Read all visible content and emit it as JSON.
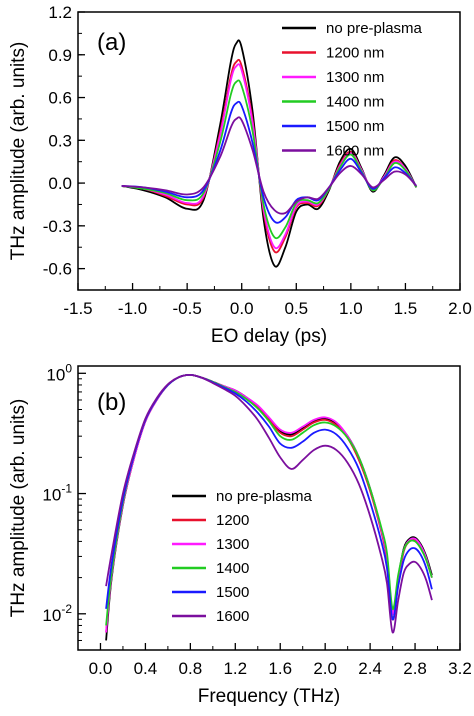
{
  "chart_data": [
    {
      "panel": "(a)",
      "type": "line",
      "xlabel": "EO delay (ps)",
      "ylabel": "THz amplitude (arb. units)",
      "xlim": [
        -1.5,
        2.0
      ],
      "ylim": [
        -0.75,
        1.2
      ],
      "xticks": [
        "-1.5",
        "-1.0",
        "-0.5",
        "0.0",
        "0.5",
        "1.0",
        "1.5",
        "2.0"
      ],
      "xtick_values": [
        -1.5,
        -1.0,
        -0.5,
        0.0,
        0.5,
        1.0,
        1.5,
        2.0
      ],
      "yticks": [
        "-0.6",
        "-0.3",
        "0.0",
        "0.3",
        "0.6",
        "0.9",
        "1.2"
      ],
      "ytick_values": [
        -0.6,
        -0.3,
        0.0,
        0.3,
        0.6,
        0.9,
        1.2
      ],
      "legend_position": "top-right",
      "x": [
        -1.1,
        -0.9,
        -0.7,
        -0.5,
        -0.35,
        -0.2,
        -0.1,
        -0.05,
        0.0,
        0.1,
        0.2,
        0.3,
        0.4,
        0.5,
        0.6,
        0.7,
        0.8,
        0.9,
        1.0,
        1.1,
        1.2,
        1.3,
        1.4,
        1.5,
        1.6
      ],
      "series": [
        {
          "name": "no pre-plasma",
          "color": "#000000",
          "values": [
            -0.02,
            -0.05,
            -0.1,
            -0.18,
            -0.12,
            0.4,
            0.85,
            0.98,
            0.95,
            0.5,
            -0.25,
            -0.58,
            -0.45,
            -0.2,
            -0.15,
            -0.18,
            -0.05,
            0.15,
            0.24,
            0.1,
            -0.06,
            0.05,
            0.18,
            0.12,
            -0.03
          ]
        },
        {
          "name": "1200 nm",
          "color": "#e8112d",
          "values": [
            -0.02,
            -0.04,
            -0.09,
            -0.15,
            -0.1,
            0.35,
            0.75,
            0.85,
            0.82,
            0.44,
            -0.2,
            -0.48,
            -0.38,
            -0.17,
            -0.14,
            -0.16,
            -0.04,
            0.13,
            0.22,
            0.09,
            -0.05,
            0.04,
            0.16,
            0.1,
            -0.03
          ]
        },
        {
          "name": "1300 nm",
          "color": "#ff1aff",
          "values": [
            -0.02,
            -0.04,
            -0.08,
            -0.14,
            -0.09,
            0.33,
            0.72,
            0.82,
            0.79,
            0.42,
            -0.18,
            -0.45,
            -0.36,
            -0.16,
            -0.13,
            -0.15,
            -0.04,
            0.12,
            0.21,
            0.09,
            -0.05,
            0.04,
            0.15,
            0.1,
            -0.03
          ]
        },
        {
          "name": "1400 nm",
          "color": "#22cc22",
          "values": [
            -0.02,
            -0.04,
            -0.07,
            -0.12,
            -0.07,
            0.28,
            0.62,
            0.71,
            0.68,
            0.36,
            -0.15,
            -0.38,
            -0.31,
            -0.14,
            -0.12,
            -0.14,
            -0.04,
            0.11,
            0.2,
            0.08,
            -0.05,
            0.03,
            0.14,
            0.09,
            -0.03
          ]
        },
        {
          "name": "1500 nm",
          "color": "#1a1aff",
          "values": [
            -0.02,
            -0.03,
            -0.06,
            -0.1,
            -0.05,
            0.22,
            0.49,
            0.56,
            0.54,
            0.28,
            -0.1,
            -0.27,
            -0.24,
            -0.12,
            -0.1,
            -0.12,
            -0.03,
            0.09,
            0.17,
            0.07,
            -0.04,
            0.03,
            0.11,
            0.07,
            -0.02
          ]
        },
        {
          "name": "1600 nm",
          "color": "#7b0f9e",
          "values": [
            -0.02,
            -0.03,
            -0.05,
            -0.08,
            -0.03,
            0.18,
            0.39,
            0.45,
            0.44,
            0.23,
            -0.06,
            -0.19,
            -0.21,
            -0.13,
            -0.1,
            -0.11,
            -0.03,
            0.07,
            0.12,
            0.06,
            -0.03,
            0.02,
            0.08,
            0.06,
            -0.02
          ]
        }
      ]
    },
    {
      "panel": "(b)",
      "type": "line",
      "xlabel": "Frequency (THz)",
      "ylabel": "THz amplitude (arb. units)",
      "xlim": [
        -0.2,
        3.2
      ],
      "yscale": "log",
      "ylim": [
        0.005,
        1.15
      ],
      "xticks": [
        "0.0",
        "0.4",
        "0.8",
        "1.2",
        "1.6",
        "2.0",
        "2.4",
        "2.8",
        "3.2"
      ],
      "xtick_values": [
        0.0,
        0.4,
        0.8,
        1.2,
        1.6,
        2.0,
        2.4,
        2.8,
        3.2
      ],
      "yticks": [
        "10-2",
        "10-1",
        "100"
      ],
      "ytick_values": [
        0.01,
        0.1,
        1.0
      ],
      "legend_position": "bottom-left",
      "x": [
        0.05,
        0.1,
        0.2,
        0.3,
        0.4,
        0.5,
        0.6,
        0.7,
        0.8,
        0.9,
        1.0,
        1.1,
        1.2,
        1.3,
        1.4,
        1.5,
        1.6,
        1.7,
        1.8,
        1.9,
        2.0,
        2.1,
        2.2,
        2.3,
        2.4,
        2.5,
        2.55,
        2.6,
        2.65,
        2.7,
        2.75,
        2.8,
        2.85,
        2.9,
        2.95
      ],
      "series": [
        {
          "name": "no pre-plasma",
          "color": "#000000",
          "values": [
            0.006,
            0.02,
            0.08,
            0.2,
            0.4,
            0.6,
            0.8,
            0.93,
            0.97,
            0.92,
            0.85,
            0.78,
            0.72,
            0.63,
            0.53,
            0.42,
            0.33,
            0.31,
            0.35,
            0.4,
            0.42,
            0.38,
            0.3,
            0.2,
            0.11,
            0.05,
            0.03,
            0.01,
            0.02,
            0.035,
            0.042,
            0.043,
            0.038,
            0.03,
            0.021
          ]
        },
        {
          "name": "1200",
          "color": "#e8112d",
          "values": [
            0.007,
            0.021,
            0.082,
            0.2,
            0.4,
            0.6,
            0.8,
            0.93,
            0.97,
            0.92,
            0.85,
            0.78,
            0.71,
            0.62,
            0.52,
            0.41,
            0.32,
            0.3,
            0.34,
            0.39,
            0.41,
            0.37,
            0.29,
            0.19,
            0.105,
            0.048,
            0.028,
            0.009,
            0.018,
            0.033,
            0.04,
            0.041,
            0.036,
            0.028,
            0.02
          ]
        },
        {
          "name": "1300",
          "color": "#ff1aff",
          "values": [
            0.007,
            0.021,
            0.082,
            0.2,
            0.4,
            0.6,
            0.8,
            0.93,
            0.97,
            0.92,
            0.85,
            0.78,
            0.72,
            0.63,
            0.54,
            0.43,
            0.34,
            0.32,
            0.36,
            0.41,
            0.43,
            0.39,
            0.3,
            0.2,
            0.11,
            0.05,
            0.03,
            0.01,
            0.02,
            0.034,
            0.041,
            0.042,
            0.037,
            0.029,
            0.02
          ]
        },
        {
          "name": "1400",
          "color": "#22cc22",
          "values": [
            0.008,
            0.022,
            0.085,
            0.21,
            0.41,
            0.61,
            0.8,
            0.93,
            0.97,
            0.92,
            0.85,
            0.77,
            0.7,
            0.61,
            0.51,
            0.4,
            0.3,
            0.28,
            0.32,
            0.37,
            0.39,
            0.36,
            0.29,
            0.2,
            0.11,
            0.052,
            0.032,
            0.011,
            0.021,
            0.034,
            0.04,
            0.04,
            0.035,
            0.028,
            0.02
          ]
        },
        {
          "name": "1500",
          "color": "#1a1aff",
          "values": [
            0.011,
            0.026,
            0.09,
            0.21,
            0.41,
            0.61,
            0.8,
            0.93,
            0.97,
            0.92,
            0.84,
            0.76,
            0.68,
            0.58,
            0.47,
            0.36,
            0.26,
            0.24,
            0.27,
            0.32,
            0.34,
            0.31,
            0.24,
            0.16,
            0.085,
            0.04,
            0.024,
            0.009,
            0.017,
            0.028,
            0.034,
            0.035,
            0.031,
            0.024,
            0.016
          ]
        },
        {
          "name": "1600",
          "color": "#7b0f9e",
          "values": [
            0.017,
            0.032,
            0.1,
            0.22,
            0.42,
            0.62,
            0.81,
            0.93,
            0.97,
            0.92,
            0.83,
            0.74,
            0.65,
            0.53,
            0.41,
            0.29,
            0.2,
            0.16,
            0.19,
            0.23,
            0.25,
            0.23,
            0.18,
            0.12,
            0.065,
            0.03,
            0.018,
            0.007,
            0.013,
            0.022,
            0.026,
            0.027,
            0.024,
            0.019,
            0.013
          ]
        }
      ]
    }
  ]
}
